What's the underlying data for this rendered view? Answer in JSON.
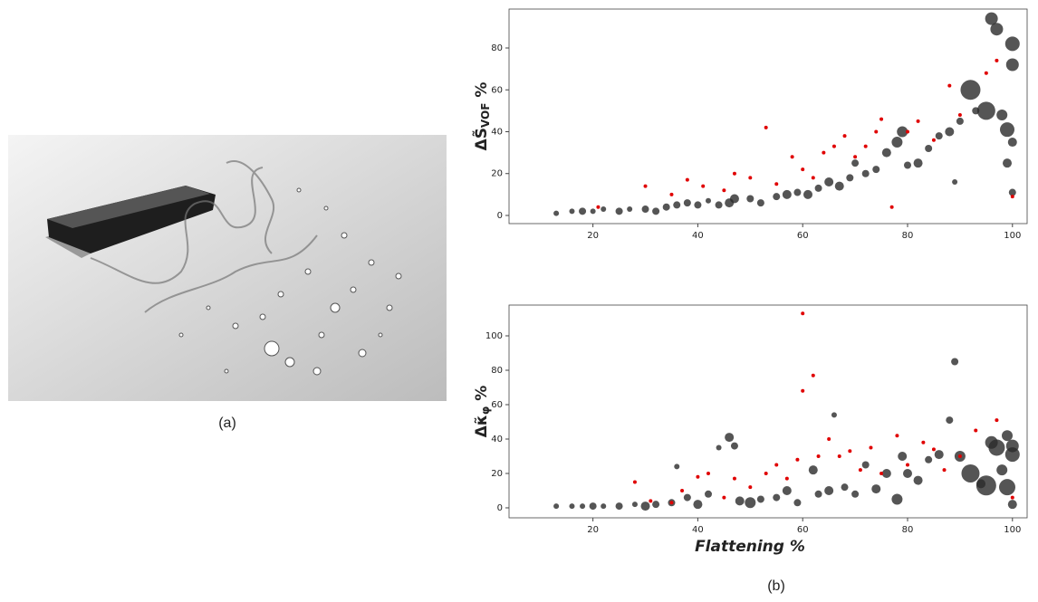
{
  "captions": [
    "(a)",
    "(b)"
  ],
  "chart_data": [
    {
      "type": "scatter",
      "ylabel": "ΔS̃",
      "ylabel_sub": "VOF",
      "ylabel_unit": "%",
      "xlim": [
        4,
        102.8
      ],
      "ylim": [
        -3.9,
        98.6
      ],
      "xticks": [
        20,
        40,
        60,
        80,
        100
      ],
      "yticks": [
        0,
        20,
        40,
        60,
        80
      ],
      "series": [
        {
          "color": "#2b2b2b",
          "x": [
            13,
            16,
            18,
            20,
            22,
            25,
            27,
            30,
            32,
            34,
            36,
            38,
            40,
            42,
            44,
            46,
            47,
            50,
            52,
            55,
            57,
            59,
            61,
            63,
            65,
            67,
            69,
            70,
            72,
            74,
            76,
            78,
            79,
            80,
            82,
            84,
            86,
            88,
            89,
            90,
            92,
            93,
            95,
            96,
            97,
            98,
            99,
            99,
            100,
            100,
            100,
            100
          ],
          "values": [
            1,
            2,
            2,
            2,
            3,
            2,
            3,
            3,
            2,
            4,
            5,
            6,
            5,
            7,
            5,
            6,
            8,
            8,
            6,
            9,
            10,
            11,
            10,
            13,
            16,
            14,
            18,
            25,
            20,
            22,
            30,
            35,
            40,
            24,
            25,
            32,
            38,
            40,
            16,
            45,
            60,
            50,
            50,
            94,
            89,
            48,
            41,
            25,
            82,
            72,
            35,
            11
          ],
          "sizes": [
            3,
            3,
            4,
            3,
            3,
            4,
            3,
            4,
            4,
            4,
            4,
            4,
            4,
            3,
            4,
            5,
            5,
            4,
            4,
            4,
            5,
            4,
            5,
            4,
            5,
            5,
            4,
            4,
            4,
            4,
            5,
            6,
            6,
            4,
            5,
            4,
            4,
            5,
            3,
            4,
            11,
            4,
            10,
            7,
            7,
            6,
            8,
            5,
            8,
            7,
            5,
            4
          ]
        },
        {
          "color": "#e00000",
          "x": [
            21,
            30,
            35,
            38,
            41,
            45,
            47,
            50,
            53,
            55,
            58,
            60,
            62,
            64,
            66,
            68,
            70,
            72,
            74,
            75,
            77,
            80,
            82,
            85,
            88,
            90,
            95,
            97,
            100
          ],
          "values": [
            4,
            14,
            10,
            17,
            14,
            12,
            20,
            18,
            42,
            15,
            28,
            22,
            18,
            30,
            33,
            38,
            28,
            33,
            40,
            46,
            4,
            40,
            45,
            36,
            62,
            48,
            68,
            74,
            9
          ]
        }
      ]
    },
    {
      "type": "scatter",
      "ylabel": "Δκ̃",
      "ylabel_sub": "φ",
      "ylabel_unit": "%",
      "xlabel": "Flattening %",
      "xlim": [
        4,
        102.8
      ],
      "ylim": [
        -5.8,
        117.9
      ],
      "xticks": [
        20,
        40,
        60,
        80,
        100
      ],
      "yticks": [
        0,
        20,
        40,
        60,
        80,
        100
      ],
      "series": [
        {
          "color": "#2b2b2b",
          "x": [
            13,
            16,
            18,
            20,
            22,
            25,
            28,
            30,
            32,
            35,
            36,
            38,
            40,
            42,
            44,
            46,
            47,
            48,
            50,
            52,
            55,
            57,
            59,
            62,
            63,
            65,
            66,
            68,
            70,
            72,
            74,
            76,
            78,
            79,
            80,
            82,
            84,
            86,
            88,
            89,
            90,
            92,
            94,
            95,
            96,
            97,
            98,
            99,
            99,
            100,
            100,
            100
          ],
          "values": [
            1,
            1,
            1,
            1,
            1,
            1,
            2,
            1,
            2,
            3,
            24,
            6,
            2,
            8,
            35,
            41,
            36,
            4,
            3,
            5,
            6,
            10,
            3,
            22,
            8,
            10,
            54,
            12,
            8,
            25,
            11,
            20,
            5,
            30,
            20,
            16,
            28,
            31,
            51,
            85,
            30,
            20,
            14,
            13,
            38,
            35,
            22,
            12,
            42,
            31,
            36,
            2
          ],
          "sizes": [
            3,
            3,
            3,
            4,
            3,
            4,
            3,
            5,
            4,
            4,
            3,
            4,
            5,
            4,
            3,
            5,
            4,
            5,
            6,
            4,
            4,
            5,
            4,
            5,
            4,
            5,
            3,
            4,
            4,
            4,
            5,
            5,
            6,
            5,
            5,
            5,
            4,
            5,
            4,
            4,
            6,
            10,
            5,
            11,
            7,
            9,
            6,
            9,
            6,
            8,
            7,
            5
          ]
        },
        {
          "color": "#e00000",
          "x": [
            28,
            31,
            35,
            37,
            40,
            42,
            45,
            47,
            50,
            53,
            55,
            57,
            59,
            60,
            60,
            62,
            63,
            65,
            67,
            69,
            71,
            73,
            75,
            78,
            80,
            83,
            85,
            87,
            90,
            93,
            97,
            100
          ],
          "values": [
            15,
            4,
            3,
            10,
            18,
            20,
            6,
            17,
            12,
            20,
            25,
            17,
            28,
            113,
            68,
            77,
            30,
            40,
            30,
            33,
            22,
            35,
            20,
            42,
            25,
            38,
            34,
            22,
            30,
            45,
            51,
            6
          ]
        }
      ]
    }
  ]
}
